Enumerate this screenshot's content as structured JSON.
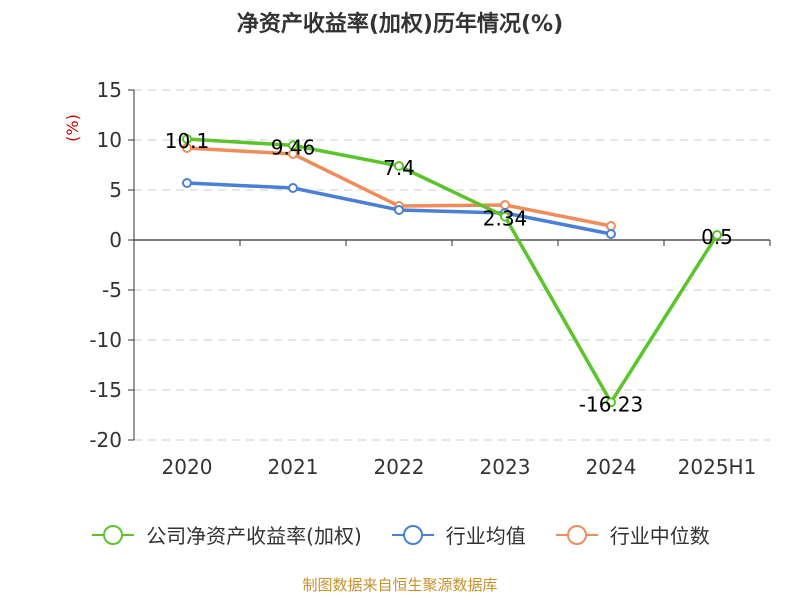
{
  "chart_data": {
    "type": "line",
    "title": "净资产收益率(加权)历年情况(%)",
    "ylabel": "(%)",
    "xlabel": "",
    "categories": [
      "2020",
      "2021",
      "2022",
      "2023",
      "2024",
      "2025H1"
    ],
    "ylim": [
      -20,
      15
    ],
    "yticks": [
      15,
      10,
      5,
      0,
      -5,
      -10,
      -15,
      -20
    ],
    "grid": true,
    "legend_position": "bottom",
    "series": [
      {
        "name": "公司净资产收益率(加权)",
        "color": "#5cc42b",
        "values": [
          10.1,
          9.46,
          7.4,
          2.34,
          -16.23,
          0.5
        ],
        "labels": [
          "10.1",
          "9.46",
          "7.4",
          "2.34",
          "-16.23",
          "0.5"
        ]
      },
      {
        "name": "行业均值",
        "color": "#4a7fd6",
        "values": [
          5.7,
          5.2,
          3.0,
          2.7,
          0.6,
          null
        ]
      },
      {
        "name": "行业中位数",
        "color": "#f08c5a",
        "values": [
          9.2,
          8.6,
          3.4,
          3.5,
          1.4,
          null
        ]
      }
    ]
  },
  "footer": {
    "source": "制图数据来自恒生聚源数据库"
  }
}
